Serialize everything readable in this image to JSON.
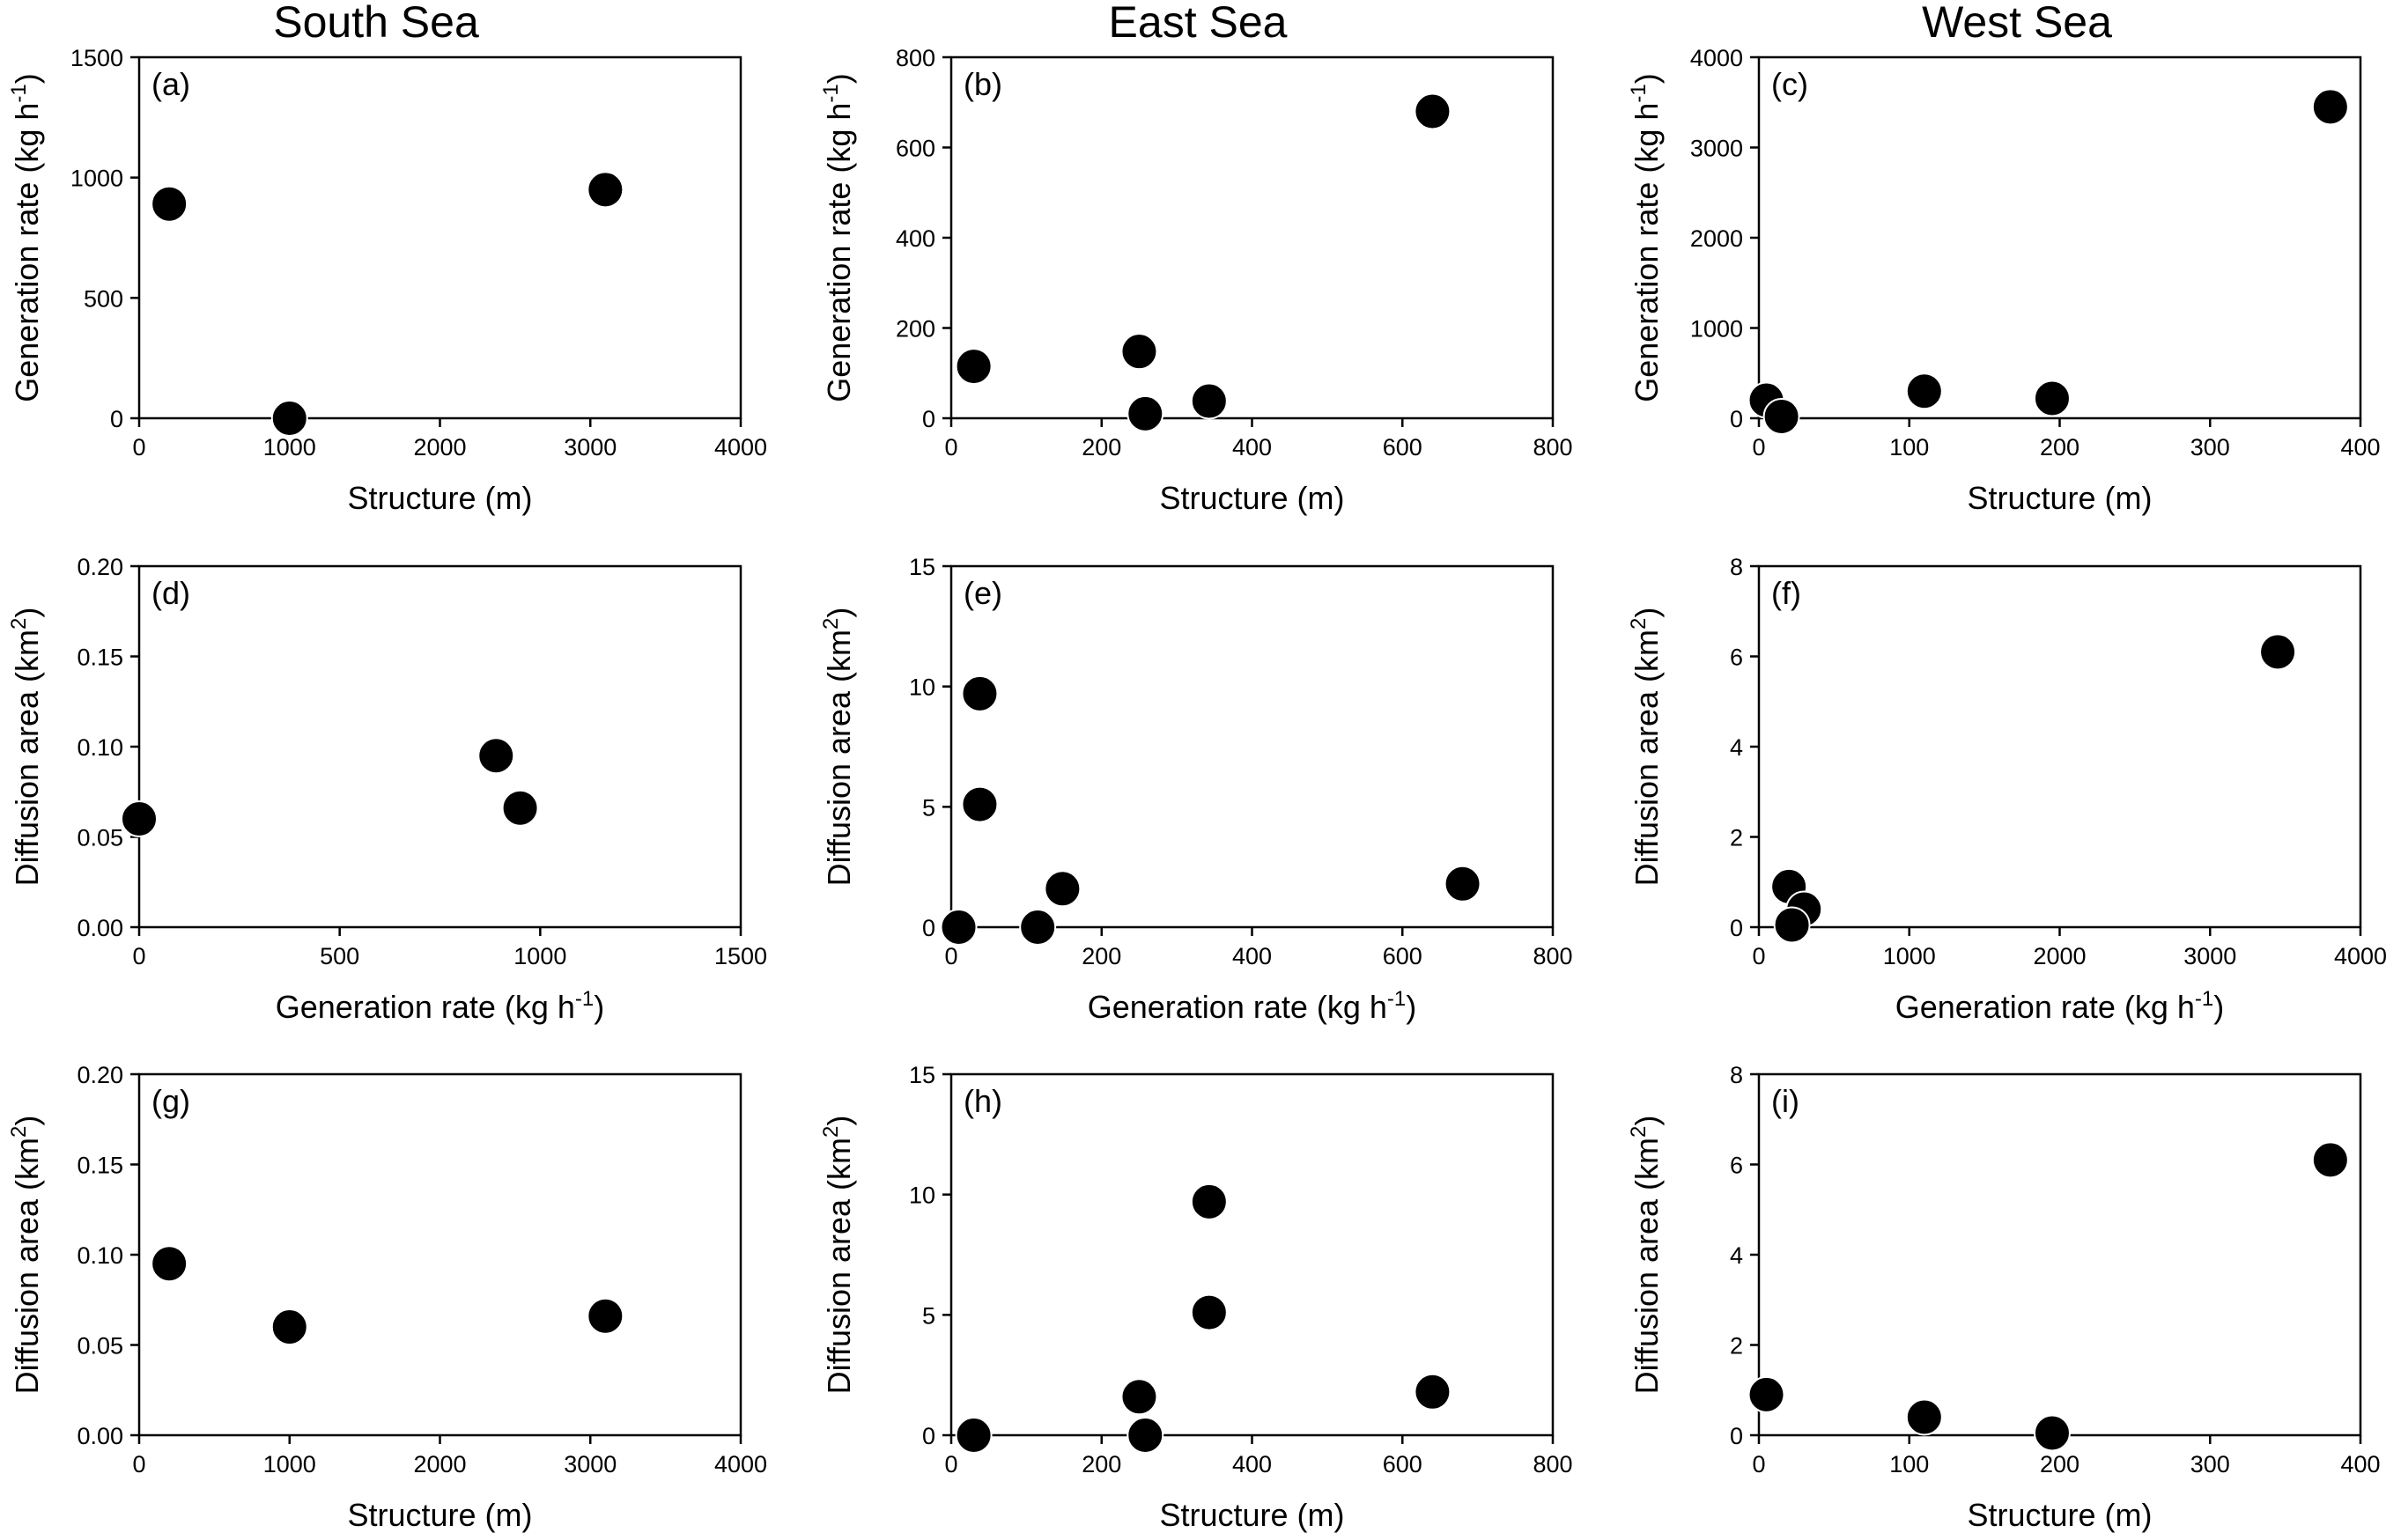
{
  "column_titles": [
    "South Sea",
    "East Sea",
    "West Sea"
  ],
  "chart_data": [
    {
      "type": "scatter",
      "panel": "(a)",
      "xlabel": "Structure (m)",
      "ylabel": {
        "text": "Generation rate (kg h",
        "sup": "-1",
        "close": ")"
      },
      "xlim": [
        0,
        4000
      ],
      "ylim": [
        0,
        1500
      ],
      "xticks": [
        0,
        1000,
        2000,
        3000,
        4000
      ],
      "yticks": [
        0,
        500,
        1000,
        1500
      ],
      "x": [
        200,
        1000,
        3100
      ],
      "y": [
        890,
        0,
        950
      ]
    },
    {
      "type": "scatter",
      "panel": "(b)",
      "xlabel": "Structure (m)",
      "ylabel": {
        "text": "Generation rate (kg h",
        "sup": "-1",
        "close": ")"
      },
      "xlim": [
        0,
        800
      ],
      "ylim": [
        0,
        800
      ],
      "xticks": [
        0,
        200,
        400,
        600,
        800
      ],
      "yticks": [
        0,
        200,
        400,
        600,
        800
      ],
      "x": [
        30,
        250,
        258,
        343,
        640
      ],
      "y": [
        115,
        148,
        10,
        38,
        680
      ]
    },
    {
      "type": "scatter",
      "panel": "(c)",
      "xlabel": "Structure (m)",
      "ylabel": {
        "text": "Generation rate (kg h",
        "sup": "-1",
        "close": ")"
      },
      "xlim": [
        0,
        400
      ],
      "ylim": [
        0,
        4000
      ],
      "xticks": [
        0,
        100,
        200,
        300,
        400
      ],
      "yticks": [
        0,
        1000,
        2000,
        3000,
        4000
      ],
      "x": [
        5,
        15,
        110,
        195,
        380
      ],
      "y": [
        200,
        20,
        300,
        220,
        3450
      ]
    },
    {
      "type": "scatter",
      "panel": "(d)",
      "xlabel": {
        "text": "Generation rate (kg h",
        "sup": "-1",
        "close": ")"
      },
      "ylabel": {
        "text": "Diffusion area (km",
        "sup": "2",
        "close": ")"
      },
      "xlim": [
        0,
        1500
      ],
      "ylim": [
        0,
        0.2
      ],
      "xticks": [
        0,
        500,
        1000,
        1500
      ],
      "yticks": [
        "0.00",
        "0.05",
        "0.10",
        "0.15",
        "0.20"
      ],
      "x": [
        0,
        890,
        950
      ],
      "y": [
        0.06,
        0.095,
        0.066
      ]
    },
    {
      "type": "scatter",
      "panel": "(e)",
      "xlabel": {
        "text": "Generation rate (kg h",
        "sup": "-1",
        "close": ")"
      },
      "ylabel": {
        "text": "Diffusion area (km",
        "sup": "2",
        "close": ")"
      },
      "xlim": [
        0,
        800
      ],
      "ylim": [
        0,
        15
      ],
      "xticks": [
        0,
        200,
        400,
        600,
        800
      ],
      "yticks": [
        0,
        5,
        10,
        15
      ],
      "x": [
        10,
        38,
        38,
        115,
        148,
        680
      ],
      "y": [
        0,
        9.7,
        5.1,
        0,
        1.6,
        1.8
      ]
    },
    {
      "type": "scatter",
      "panel": "(f)",
      "xlabel": {
        "text": "Generation rate (kg h",
        "sup": "-1",
        "close": ")"
      },
      "ylabel": {
        "text": "Diffusion area (km",
        "sup": "2",
        "close": ")"
      },
      "xlim": [
        0,
        4000
      ],
      "ylim": [
        0,
        8
      ],
      "xticks": [
        0,
        1000,
        2000,
        3000,
        4000
      ],
      "yticks": [
        0,
        2,
        4,
        6,
        8
      ],
      "x": [
        200,
        300,
        220,
        3450
      ],
      "y": [
        0.9,
        0.4,
        0.05,
        6.1
      ]
    },
    {
      "type": "scatter",
      "panel": "(g)",
      "xlabel": "Structure (m)",
      "ylabel": {
        "text": "Diffusion area (km",
        "sup": "2",
        "close": ")"
      },
      "xlim": [
        0,
        4000
      ],
      "ylim": [
        0,
        0.2
      ],
      "xticks": [
        0,
        1000,
        2000,
        3000,
        4000
      ],
      "yticks": [
        "0.00",
        "0.05",
        "0.10",
        "0.15",
        "0.20"
      ],
      "x": [
        200,
        1000,
        3100
      ],
      "y": [
        0.095,
        0.06,
        0.066
      ]
    },
    {
      "type": "scatter",
      "panel": "(h)",
      "xlabel": "Structure (m)",
      "ylabel": {
        "text": "Diffusion area (km",
        "sup": "2",
        "close": ")"
      },
      "xlim": [
        0,
        800
      ],
      "ylim": [
        0,
        15
      ],
      "xticks": [
        0,
        200,
        400,
        600,
        800
      ],
      "yticks": [
        0,
        5,
        10,
        15
      ],
      "x": [
        30,
        250,
        258,
        343,
        343,
        640
      ],
      "y": [
        0,
        1.6,
        0,
        9.7,
        5.1,
        1.8
      ]
    },
    {
      "type": "scatter",
      "panel": "(i)",
      "xlabel": "Structure (m)",
      "ylabel": {
        "text": "Diffusion area (km",
        "sup": "2",
        "close": ")"
      },
      "xlim": [
        0,
        400
      ],
      "ylim": [
        0,
        8
      ],
      "xticks": [
        0,
        100,
        200,
        300,
        400
      ],
      "yticks": [
        0,
        2,
        4,
        6,
        8
      ],
      "x": [
        5,
        110,
        195,
        380
      ],
      "y": [
        0.9,
        0.4,
        0.05,
        6.1
      ]
    }
  ]
}
